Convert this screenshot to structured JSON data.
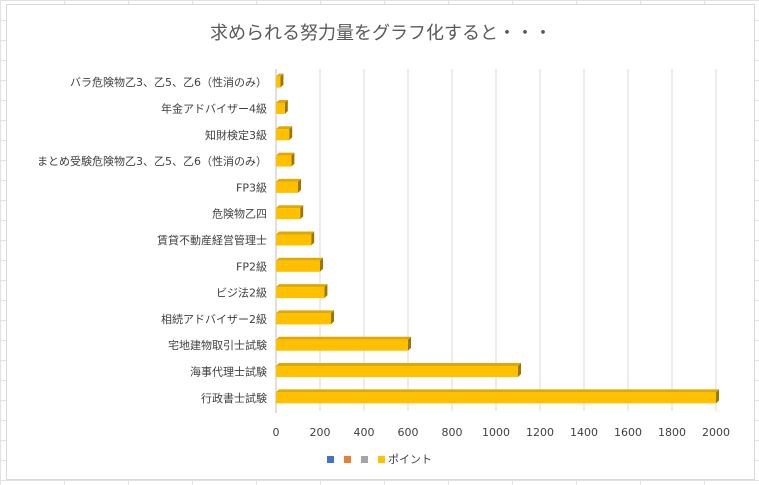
{
  "chart_data": {
    "type": "bar",
    "orientation": "horizontal",
    "title": "求められる努力量をグラフ化すると・・・",
    "categories": [
      "バラ危険物乙3、乙5、乙6（性消のみ）",
      "年金アドバイザー4級",
      "知財検定3級",
      "まとめ受験危険物乙3、乙5、乙6（性消のみ）",
      "FP3級",
      "危険物乙四",
      "賃貸不動産経営管理士",
      "FP2級",
      "ビジ法2級",
      "相続アドバイザー2級",
      "宅地建物取引士試験",
      "海事代理士試験",
      "行政書士試験"
    ],
    "series": [
      {
        "name": "ポイント",
        "color": "#FFC000",
        "values": [
          20,
          40,
          60,
          70,
          100,
          110,
          160,
          200,
          220,
          250,
          600,
          1100,
          2000
        ]
      }
    ],
    "legend": {
      "position": "bottom",
      "entries": [
        {
          "label": "",
          "color": "#4472C4"
        },
        {
          "label": "",
          "color": "#ED7D31"
        },
        {
          "label": "",
          "color": "#A5A5A5"
        },
        {
          "label": "ポイント",
          "color": "#FFC000"
        }
      ]
    },
    "xlim": [
      0,
      2000
    ],
    "xticks": [
      0,
      200,
      400,
      600,
      800,
      1000,
      1200,
      1400,
      1600,
      1800,
      2000
    ],
    "grid": true
  }
}
